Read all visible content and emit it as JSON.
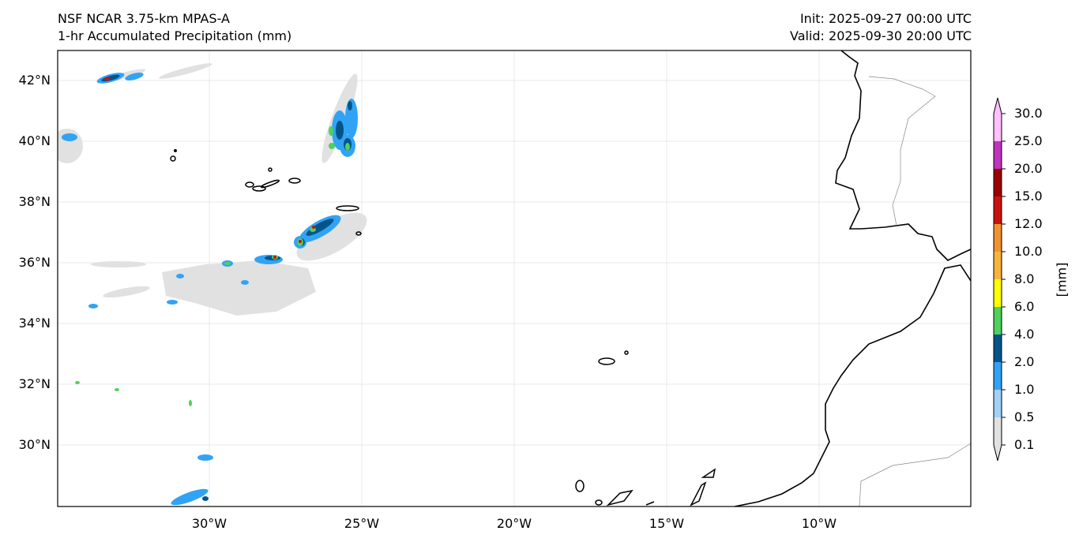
{
  "title_left": [
    "NSF NCAR 3.75-km MPAS-A",
    "1-hr Accumulated Precipitation (mm)"
  ],
  "title_right": [
    "Init: 2025-09-27 00:00 UTC",
    "Valid: 2025-09-30 20:00 UTC"
  ],
  "lat_labels": [
    "42°N",
    "40°N",
    "38°N",
    "36°N",
    "34°N",
    "32°N",
    "30°N"
  ],
  "lon_labels": [
    "30°W",
    "25°W",
    "20°W",
    "15°W",
    "10°W"
  ],
  "colorbar": {
    "unit": "[mm]",
    "ticks": [
      "30.0",
      "25.0",
      "20.0",
      "15.0",
      "12.0",
      "10.0",
      "8.0",
      "6.0",
      "4.0",
      "2.0",
      "1.0",
      "0.5",
      "0.1"
    ],
    "colors": [
      "#ffc0ff",
      "#c034c0",
      "#9b0000",
      "#cc1111",
      "#f0922e",
      "#f7b43a",
      "#ffff00",
      "#4fd15c",
      "#02558b",
      "#31a3f5",
      "#a0d2f8",
      "#e1e1e1"
    ]
  }
}
